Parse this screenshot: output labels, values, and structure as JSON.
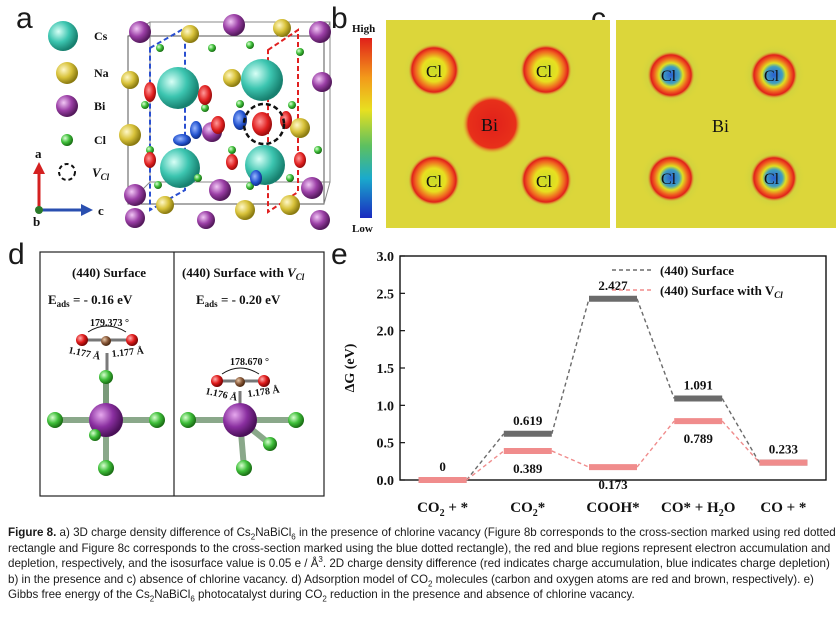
{
  "panel_letters": {
    "a": "a",
    "b": "b",
    "c": "c",
    "d": "d",
    "e": "e"
  },
  "panel_a": {
    "legend": [
      {
        "label": "Cs",
        "color": "#3cc5b0"
      },
      {
        "label": "Na",
        "color": "#d8c23a"
      },
      {
        "label": "Bi",
        "color": "#9b3fa6"
      },
      {
        "label": "Cl",
        "color": "#3fbf3a"
      }
    ],
    "vacancy_label": "V",
    "vacancy_sub": "Cl",
    "axes": {
      "a": "a",
      "b": "b",
      "c": "c"
    }
  },
  "colorbar": {
    "high": "High",
    "low": "Low"
  },
  "panel_b": {
    "atoms": [
      "Cl",
      "Cl",
      "Bi",
      "Cl",
      "Cl"
    ]
  },
  "panel_c": {
    "atoms": [
      "Cl",
      "Cl",
      "Bi",
      "Cl",
      "Cl"
    ]
  },
  "panel_d": {
    "left": {
      "title": "(440) Surface",
      "eads_label": "E",
      "eads_sub": "ads",
      "eads_value": " = - 0.16 eV",
      "angle": "179.373 °",
      "bond1": "1.177 Å",
      "bond2": "1.177 Å"
    },
    "right": {
      "title": "(440) Surface with ",
      "title_v": "V",
      "title_sub": "Cl",
      "eads_label": "E",
      "eads_sub": "ads",
      "eads_value": " = - 0.20 eV",
      "angle": "178.670 °",
      "bond1": "1.176 Å",
      "bond2": "1.178 Å"
    }
  },
  "chart_data": {
    "type": "line",
    "ylabel": "ΔG (eV)",
    "ylim": [
      0,
      3.0
    ],
    "yticks": [
      "0.0",
      "0.5",
      "1.0",
      "1.5",
      "2.0",
      "2.5",
      "3.0"
    ],
    "categories": [
      "CO2 + *",
      "CO2*",
      "COOH*",
      "CO* + H2O",
      "CO + *"
    ],
    "category_labels": [
      {
        "main": "CO",
        "sub": "2",
        "rest": " + *"
      },
      {
        "main": "CO",
        "sub": "2",
        "rest": "*"
      },
      {
        "main": "COOH*",
        "sub": "",
        "rest": ""
      },
      {
        "main": "CO* + H",
        "sub": "2",
        "rest": "O"
      },
      {
        "main": "CO + *",
        "sub": "",
        "rest": ""
      }
    ],
    "series": [
      {
        "name": "(440) Surface",
        "color": "#6b6b6b",
        "values": [
          0,
          0.619,
          2.427,
          1.091,
          0.233
        ],
        "labels": [
          "0",
          "0.619",
          "2.427",
          "1.091",
          "0.233"
        ]
      },
      {
        "name": "(440) Surface with V",
        "name_sub": "Cl",
        "color": "#f08c8c",
        "values": [
          0,
          0.389,
          0.173,
          0.789,
          0.233
        ],
        "labels": [
          "",
          "0.389",
          "0.173",
          "0.789",
          ""
        ]
      }
    ],
    "legend_position": "top-right"
  },
  "caption": {
    "fig": "Figure 8.",
    "t1": " a) 3D charge density difference of Cs",
    "t2": "NaBiCl",
    "t3": " in the presence of chlorine vacancy (Figure 8b corresponds to the cross-section marked using red dotted rectangle and Figure 8c corresponds to the cross-section marked using the blue dotted rectangle), the red and blue regions represent electron accumulation and depletion, respectively, and the isosurface value is 0.05 e / Å",
    "t4": ". 2D charge density difference (red indicates charge accumulation, blue indicates charge depletion) b) in the presence and c) absence of chlorine vacancy. d) Adsorption model of CO",
    "t5": " molecules (carbon and oxygen atoms are red and brown, respectively). e) Gibbs free energy of the Cs",
    "t6": "NaBiCl",
    "t7": " photocatalyst during CO",
    "t8": " reduction in the presence and absence of chlorine vacancy.",
    "s2": "2",
    "s6": "6",
    "s3": "3"
  }
}
